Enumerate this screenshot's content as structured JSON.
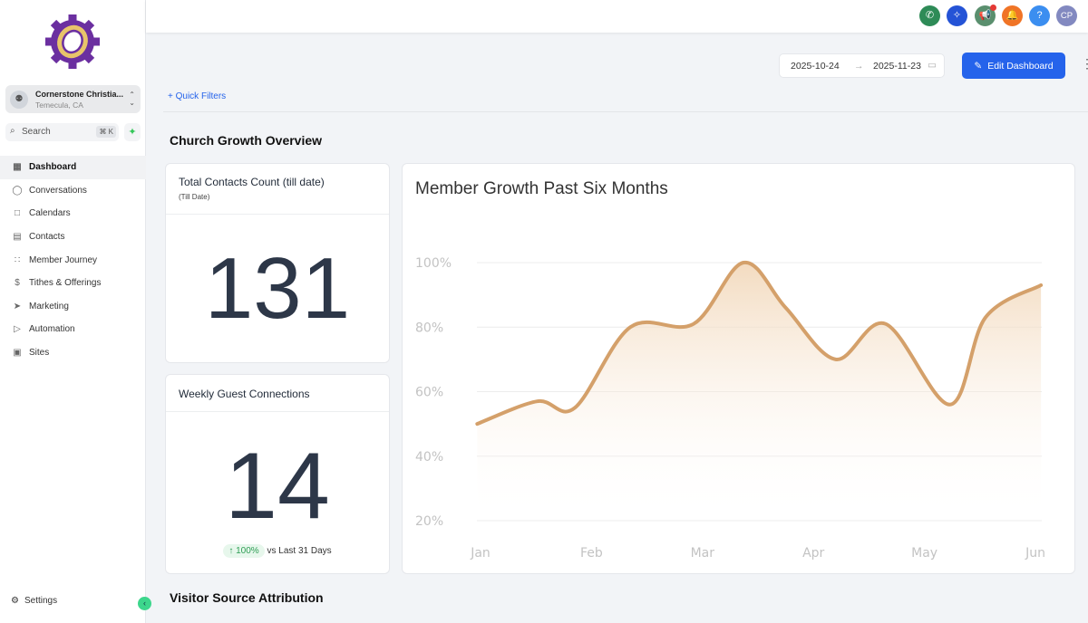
{
  "sidebar": {
    "location_name": "Cornerstone Christia...",
    "location_city": "Temecula, CA",
    "avatar_initials": "⚉",
    "search_label": "Search",
    "search_shortcut": "⌘ K",
    "items": [
      {
        "label": "Dashboard",
        "icon": "▦"
      },
      {
        "label": "Conversations",
        "icon": "◯"
      },
      {
        "label": "Calendars",
        "icon": "□"
      },
      {
        "label": "Contacts",
        "icon": "▤"
      },
      {
        "label": "Member Journey",
        "icon": "∷"
      },
      {
        "label": "Tithes & Offerings",
        "icon": "$"
      },
      {
        "label": "Marketing",
        "icon": "➤"
      },
      {
        "label": "Automation",
        "icon": "▷"
      },
      {
        "label": "Sites",
        "icon": "▣"
      }
    ],
    "settings_label": "Settings"
  },
  "topbar": {
    "avatar_initials": "CP",
    "help": "?",
    "colors": {
      "phone": "#2e8b57",
      "ai": "#2453d6",
      "announce": "#5a8f6e",
      "bell": "#f07426",
      "help": "#3b8ef0",
      "avatar": "#8289c0"
    }
  },
  "toolbar": {
    "date_start": "2025-10-24",
    "date_end": "2025-11-23",
    "arrow": "→",
    "edit_label": "Edit Dashboard",
    "quick_filters": "Quick Filters"
  },
  "sections": {
    "growth": "Church Growth Overview",
    "visitor": "Visitor Source Attribution"
  },
  "cards": {
    "contacts": {
      "title": "Total Contacts Count (till date)",
      "subtitle": "(Till Date)",
      "value": "131"
    },
    "guests": {
      "title": "Weekly Guest Connections",
      "value": "14",
      "change": "↑ 100%",
      "change_label": "vs Last 31 Days"
    }
  },
  "chart_data": {
    "type": "area",
    "title": "Member Growth Past Six Months",
    "categories": [
      "Jan",
      "Feb",
      "Mar",
      "Apr",
      "May",
      "Jun"
    ],
    "yticks": [
      "100%",
      "80%",
      "60%",
      "40%",
      "20%"
    ],
    "ylim": [
      20,
      100
    ],
    "xlim": [
      0,
      5
    ],
    "grid": true,
    "color": "#d4a06a",
    "points": [
      [
        -0.03,
        50
      ],
      [
        0.51,
        57
      ],
      [
        0.85,
        55
      ],
      [
        1.35,
        80
      ],
      [
        1.92,
        81
      ],
      [
        2.37,
        100
      ],
      [
        2.75,
        86
      ],
      [
        3.2,
        70
      ],
      [
        3.65,
        81
      ],
      [
        4.23,
        56
      ],
      [
        4.55,
        83
      ],
      [
        5.05,
        93
      ]
    ]
  }
}
